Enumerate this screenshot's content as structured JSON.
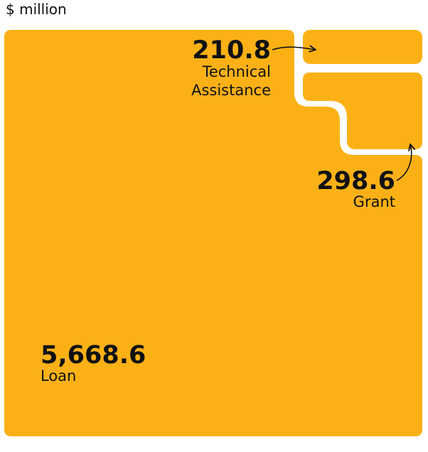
{
  "unit_label": "$ million",
  "colors": {
    "fill": "#FBB116",
    "text": "#111111",
    "background": "#ffffff"
  },
  "chart_data": {
    "type": "treemap",
    "title": "",
    "unit": "$ million",
    "items": [
      {
        "label": "Loan",
        "value": 5668.6,
        "value_label": "5,668.6"
      },
      {
        "label": "Grant",
        "value": 298.6,
        "value_label": "298.6"
      },
      {
        "label": "Technical Assistance",
        "value": 210.8,
        "value_label": "210.8",
        "label_lines": [
          "Technical",
          "Assistance"
        ]
      }
    ]
  }
}
